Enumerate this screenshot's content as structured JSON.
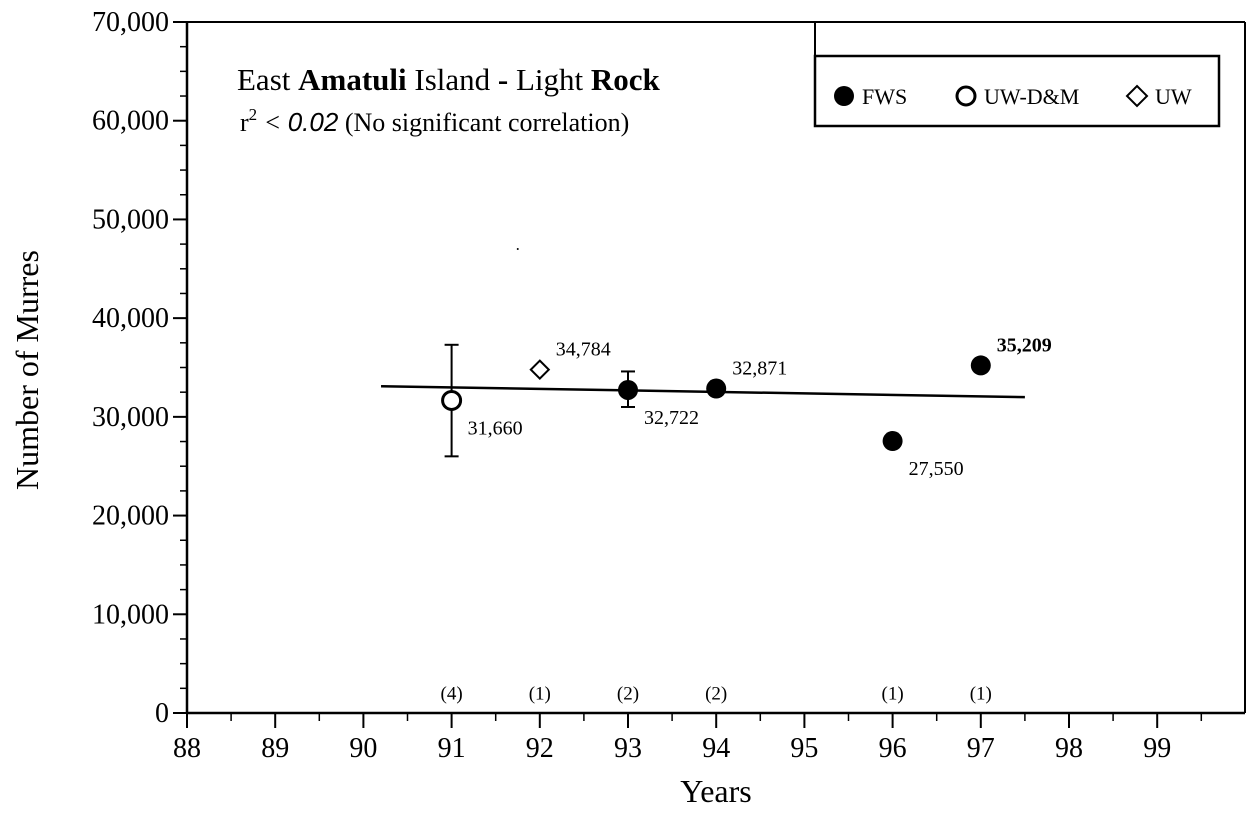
{
  "chart_data": {
    "type": "scatter",
    "title_parts": [
      {
        "text": "East ",
        "bold": false
      },
      {
        "text": "Amatuli",
        "bold": true
      },
      {
        "text": " Island ",
        "bold": false
      },
      {
        "text": "-",
        "bold": true
      },
      {
        "text": " Light ",
        "bold": false
      },
      {
        "text": "Rock",
        "bold": true
      }
    ],
    "subtitle": {
      "r_symbol": "r",
      "superscript": "2",
      "operator": "<",
      "value": "0.02",
      "note": "(No significant correlation)"
    },
    "xlabel": "Years",
    "ylabel": "Number of Murres",
    "xlim": [
      88,
      99.8
    ],
    "ylim": [
      0,
      70000
    ],
    "x_ticks": [
      88,
      89,
      90,
      91,
      92,
      93,
      94,
      95,
      96,
      97,
      98,
      99
    ],
    "x_tick_labels": [
      "88",
      "89",
      "90",
      "91",
      "92",
      "93",
      "94",
      "95",
      "96",
      "97",
      "98",
      "99"
    ],
    "y_ticks": [
      0,
      10000,
      20000,
      30000,
      40000,
      50000,
      60000,
      70000
    ],
    "y_tick_labels": [
      "0",
      "10,000",
      "20,000",
      "30,000",
      "40,000",
      "50,000",
      "60,000",
      "70,000"
    ],
    "y_minor_step": 2500,
    "grid": false,
    "legend": {
      "position": "top-right",
      "entries": [
        {
          "marker": "filled-circle",
          "label": "FWS"
        },
        {
          "marker": "open-circle",
          "label": "UW-D&M"
        },
        {
          "marker": "open-diamond",
          "label": "UW"
        }
      ]
    },
    "series": [
      {
        "name": "FWS",
        "marker": "filled-circle",
        "points": [
          {
            "x": 93,
            "y": 32722,
            "label": "32,722",
            "err_low": 31000,
            "err_high": 34600,
            "label_pos": "below-right"
          },
          {
            "x": 94,
            "y": 32871,
            "label": "32,871",
            "label_pos": "above-right"
          },
          {
            "x": 96,
            "y": 27550,
            "label": "27,550",
            "label_pos": "below-right"
          },
          {
            "x": 97,
            "y": 35209,
            "label": "35,209",
            "label_pos": "above-right",
            "bold_label": true
          }
        ]
      },
      {
        "name": "UW-D&M",
        "marker": "open-circle",
        "points": [
          {
            "x": 91,
            "y": 31660,
            "label": "31,660",
            "err_low": 26000,
            "err_high": 37300,
            "label_pos": "below-right"
          }
        ]
      },
      {
        "name": "UW",
        "marker": "open-diamond",
        "points": [
          {
            "x": 92,
            "y": 34784,
            "label": "34,784",
            "label_pos": "above-right"
          }
        ]
      }
    ],
    "trend_line": {
      "x": [
        90.2,
        97.5
      ],
      "y": [
        33100,
        32000
      ]
    },
    "sample_sizes": [
      {
        "x": 91,
        "label": "(4)"
      },
      {
        "x": 92,
        "label": "(1)"
      },
      {
        "x": 93,
        "label": "(2)"
      },
      {
        "x": 94,
        "label": "(2)"
      },
      {
        "x": 96,
        "label": "(1)"
      },
      {
        "x": 97,
        "label": "(1)"
      }
    ],
    "sample_size_y": 2500
  }
}
